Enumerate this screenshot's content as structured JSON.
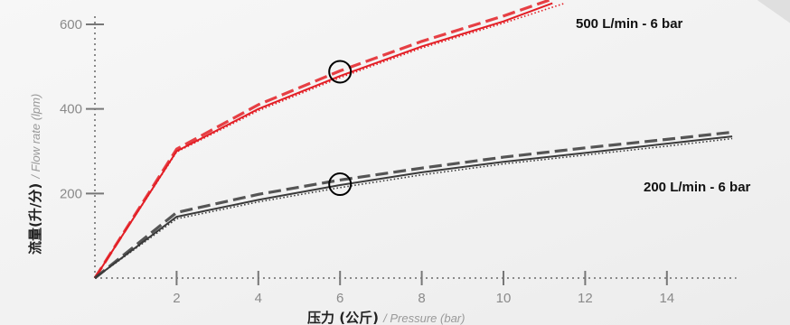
{
  "chart_data": {
    "type": "line",
    "xlabel_main": "压力 (公斤)",
    "xlabel_sub": "/ Pressure (bar)",
    "ylabel_main": "流量(升/分)",
    "ylabel_sub": "/ Flow rate (lpm)",
    "xlim": [
      0,
      15.7
    ],
    "ylim": [
      0,
      670
    ],
    "x_ticks": [
      2,
      4,
      6,
      8,
      10,
      12,
      14
    ],
    "y_ticks": [
      200,
      400,
      600
    ],
    "grid": false,
    "series": [
      {
        "name": "500 L/min - 6 bar",
        "color": "#e31e25",
        "curves": [
          {
            "style": "solid",
            "points": [
              [
                0,
                0
              ],
              [
                2,
                300
              ],
              [
                4,
                400
              ],
              [
                6,
                478
              ],
              [
                8,
                548
              ],
              [
                10,
                607
              ],
              [
                11.2,
                650
              ]
            ]
          },
          {
            "style": "dashed",
            "points": [
              [
                0,
                0
              ],
              [
                2,
                305
              ],
              [
                4,
                410
              ],
              [
                6,
                490
              ],
              [
                8,
                560
              ],
              [
                10,
                620
              ],
              [
                11.2,
                660
              ]
            ]
          },
          {
            "style": "dotted",
            "points": [
              [
                0,
                0
              ],
              [
                2,
                298
              ],
              [
                4,
                396
              ],
              [
                6,
                474
              ],
              [
                8,
                544
              ],
              [
                10,
                603
              ],
              [
                11.5,
                650
              ]
            ]
          }
        ],
        "marker": {
          "x": 6,
          "y": 488
        }
      },
      {
        "name": "200 L/min - 6 bar",
        "color": "#3a3a3a",
        "curves": [
          {
            "style": "solid",
            "points": [
              [
                0,
                0
              ],
              [
                2,
                145
              ],
              [
                4,
                185
              ],
              [
                6,
                220
              ],
              [
                8,
                250
              ],
              [
                10,
                275
              ],
              [
                12,
                296
              ],
              [
                14,
                318
              ],
              [
                15.6,
                335
              ]
            ]
          },
          {
            "style": "dashed",
            "points": [
              [
                0,
                0
              ],
              [
                2,
                155
              ],
              [
                4,
                198
              ],
              [
                6,
                232
              ],
              [
                8,
                260
              ],
              [
                10,
                286
              ],
              [
                12,
                308
              ],
              [
                14,
                328
              ],
              [
                15.6,
                345
              ]
            ]
          },
          {
            "style": "dotted",
            "points": [
              [
                0,
                0
              ],
              [
                2,
                140
              ],
              [
                4,
                180
              ],
              [
                6,
                214
              ],
              [
                8,
                244
              ],
              [
                10,
                270
              ],
              [
                12,
                291
              ],
              [
                14,
                312
              ],
              [
                15.6,
                330
              ]
            ]
          }
        ],
        "marker": {
          "x": 6,
          "y": 222
        }
      }
    ]
  }
}
